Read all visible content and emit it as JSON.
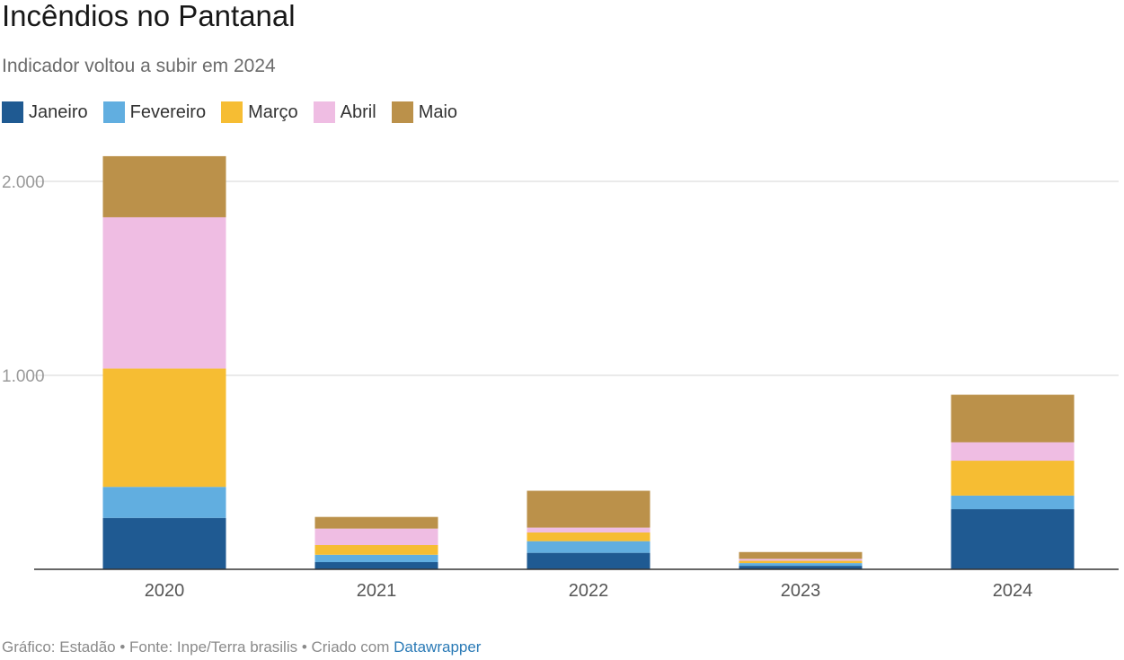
{
  "header": {
    "title": "Incêndios no Pantanal",
    "subtitle": "Indicador voltou a subir em 2024"
  },
  "legend": [
    {
      "label": "Janeiro",
      "color": "#1f5a92"
    },
    {
      "label": "Fevereiro",
      "color": "#61aee0"
    },
    {
      "label": "Março",
      "color": "#f6bd33"
    },
    {
      "label": "Abril",
      "color": "#efbde3"
    },
    {
      "label": "Maio",
      "color": "#bb914a"
    }
  ],
  "footer": {
    "prefix": "Gráfico: Estadão • Fonte: Inpe/Terra brasilis • Criado com ",
    "link": "Datawrapper"
  },
  "chart_data": {
    "type": "bar",
    "stacked": true,
    "categories": [
      "2020",
      "2021",
      "2022",
      "2023",
      "2024"
    ],
    "series": [
      {
        "name": "Janeiro",
        "color": "#1f5a92",
        "values": [
          265,
          37,
          85,
          18,
          310
        ]
      },
      {
        "name": "Fevereiro",
        "color": "#61aee0",
        "values": [
          160,
          38,
          60,
          14,
          70
        ]
      },
      {
        "name": "Março",
        "color": "#f6bd33",
        "values": [
          610,
          50,
          45,
          12,
          180
        ]
      },
      {
        "name": "Abril",
        "color": "#efbde3",
        "values": [
          780,
          85,
          25,
          10,
          95
        ]
      },
      {
        "name": "Maio",
        "color": "#bb914a",
        "values": [
          315,
          60,
          190,
          35,
          245
        ]
      }
    ],
    "yticks": [
      {
        "value": 1000,
        "label": "1.000"
      },
      {
        "value": 2000,
        "label": "2.000"
      }
    ],
    "ylim": [
      0,
      2200
    ],
    "grid": true,
    "legend_position": "top-left",
    "xlabel": "",
    "ylabel": ""
  }
}
